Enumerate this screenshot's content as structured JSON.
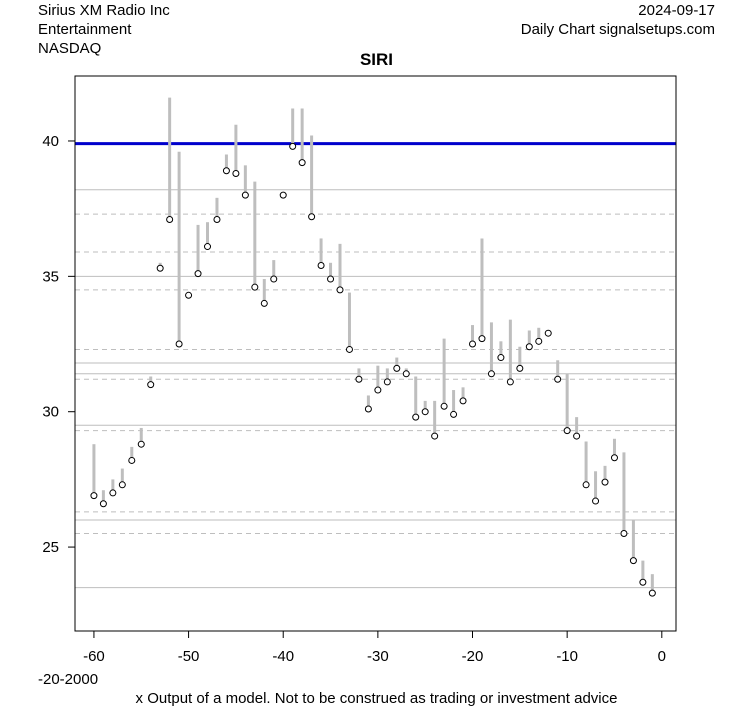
{
  "header": {
    "company": "Sirius XM Radio Inc",
    "sector": "Entertainment",
    "exchange": "NASDAQ",
    "date": "2024-09-17",
    "source": "Daily Chart signalsetups.com"
  },
  "footer": {
    "left_note": "-20-2000",
    "disclaimer": "x Output of a model. Not to be construed as trading or investment advice"
  },
  "chart_data": {
    "type": "line",
    "title": "SIRI",
    "xlabel": "",
    "ylabel": "",
    "xlim": [
      -62,
      1.5
    ],
    "ylim": [
      21.9,
      42.4
    ],
    "x_ticks": [
      -60,
      -50,
      -40,
      -30,
      -20,
      -10,
      0
    ],
    "y_ticks": [
      25,
      30,
      35,
      40
    ],
    "grid": false,
    "colors": {
      "range_bar": "#bebebe",
      "close_marker": "#000000",
      "resistance": "#0000cc",
      "level_line": "#bebebe"
    },
    "resistance_line": 39.9,
    "solid_levels": [
      38.2,
      35,
      31.8,
      31.4,
      29.5,
      26,
      23.5
    ],
    "dashed_levels": [
      37.3,
      35.9,
      34.5,
      32.3,
      31.2,
      29.3,
      26.3,
      25.5
    ],
    "series": [
      {
        "x": [
          -60,
          -59,
          -58,
          -57,
          -56,
          -55,
          -54,
          -53,
          -52,
          -51,
          -50,
          -49,
          -48,
          -47,
          -46,
          -45,
          -44,
          -43,
          -42,
          -41,
          -40,
          -39,
          -38,
          -37,
          -36,
          -35,
          -34,
          -33,
          -32,
          -31,
          -30,
          -29,
          -28,
          -27,
          -26,
          -25,
          -24,
          -23,
          -22,
          -21,
          -20,
          -19,
          -18,
          -17,
          -16,
          -15,
          -14,
          -13,
          -12,
          -11,
          -10,
          -9,
          -8,
          -7,
          -6,
          -5,
          -4,
          -3,
          -2,
          -1
        ],
        "close": [
          26.9,
          26.6,
          27.0,
          27.3,
          28.2,
          28.8,
          31.0,
          35.3,
          37.1,
          32.5,
          34.3,
          35.1,
          36.1,
          37.1,
          38.9,
          38.8,
          38.0,
          34.6,
          34.0,
          34.9,
          38.0,
          39.8,
          39.2,
          37.2,
          35.4,
          34.9,
          34.5,
          32.3,
          31.2,
          30.1,
          30.8,
          31.1,
          31.6,
          31.4,
          29.8,
          30.0,
          29.1,
          30.2,
          29.9,
          30.4,
          32.5,
          32.7,
          31.4,
          32.0,
          31.1,
          31.6,
          32.4,
          32.6,
          32.9,
          31.2,
          29.3,
          29.1,
          27.3,
          26.7,
          27.4,
          28.3,
          25.5,
          24.5,
          23.7,
          23.3
        ],
        "high": [
          28.8,
          27.1,
          27.5,
          27.9,
          28.7,
          29.4,
          31.3,
          35.5,
          41.6,
          39.6,
          34.4,
          36.9,
          37.0,
          37.9,
          39.5,
          40.6,
          39.1,
          38.5,
          34.9,
          35.6,
          38.1,
          41.2,
          41.2,
          40.2,
          36.4,
          35.5,
          36.2,
          34.4,
          31.6,
          30.6,
          31.7,
          31.6,
          32.0,
          31.6,
          31.3,
          30.4,
          30.4,
          32.7,
          30.8,
          30.9,
          33.2,
          36.4,
          33.3,
          32.6,
          33.4,
          32.4,
          33.0,
          33.1,
          33.0,
          31.9,
          31.4,
          29.8,
          28.9,
          27.8,
          28.0,
          29.0,
          28.5,
          26.0,
          24.5,
          24.0
        ]
      }
    ]
  }
}
